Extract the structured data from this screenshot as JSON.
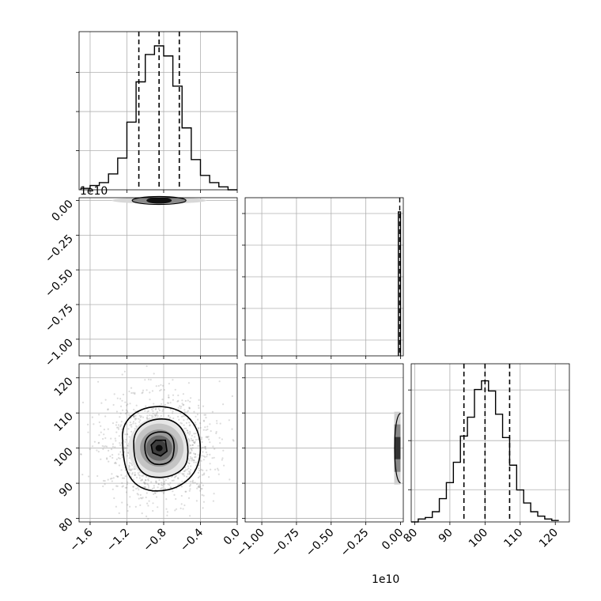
{
  "chart_data": {
    "type": "corner",
    "colors": {
      "hist": "#000000",
      "grid": "#b0b0b0",
      "scatter": "#808080",
      "quantile": "#000000"
    },
    "panels": [
      {
        "id": "p00",
        "type": "histogram",
        "x_range": [
          -1.72,
          0.0
        ],
        "bins_x": [
          -1.7,
          -1.6,
          -1.5,
          -1.4,
          -1.3,
          -1.2,
          -1.1,
          -1.0,
          -0.9,
          -0.8,
          -0.7,
          -0.6,
          -0.5,
          -0.4,
          -0.3,
          -0.2,
          -0.1
        ],
        "counts": [
          0.01,
          0.03,
          0.05,
          0.11,
          0.22,
          0.47,
          0.75,
          0.94,
          1.0,
          0.93,
          0.72,
          0.43,
          0.21,
          0.1,
          0.05,
          0.02,
          0.0
        ],
        "quantiles": [
          -1.07,
          -0.85,
          -0.63
        ],
        "y_ticks": 3
      },
      {
        "id": "p10",
        "type": "density2d",
        "x_range": [
          -1.72,
          0.0
        ],
        "y_range": [
          -1.12,
          0.02
        ],
        "y_ticks": [
          "0.00",
          "−0.25",
          "−0.50",
          "−0.75",
          "−1.00"
        ],
        "y_tick_values": [
          0.0,
          -0.25,
          -0.5,
          -0.75,
          -1.0
        ],
        "offset": "1e10",
        "center": [
          -0.85,
          0.0
        ]
      },
      {
        "id": "p11",
        "type": "histogram",
        "x_range": [
          -1.12,
          0.02
        ],
        "note_value": 0.0
      },
      {
        "id": "p20",
        "type": "density2d",
        "x_range": [
          -1.72,
          0.0
        ],
        "y_range": [
          79,
          124
        ],
        "x_ticks": [
          "−1.6",
          "−1.2",
          "−0.8",
          "−0.4",
          "0.0"
        ],
        "x_tick_values": [
          -1.6,
          -1.2,
          -0.8,
          -0.4,
          0.0
        ],
        "y_ticks": [
          "80",
          "90",
          "100",
          "110",
          "120"
        ],
        "y_tick_values": [
          80,
          90,
          100,
          110,
          120
        ],
        "center": [
          -0.85,
          100.0
        ]
      },
      {
        "id": "p21",
        "type": "density2d",
        "x_range": [
          -1.12,
          0.02
        ],
        "y_range": [
          79,
          124
        ],
        "x_ticks": [
          "−1.00",
          "−0.75",
          "−0.50",
          "−0.25",
          "0.00"
        ],
        "x_tick_values": [
          -1.0,
          -0.75,
          -0.5,
          -0.25,
          0.0
        ],
        "offset": "1e10",
        "center": [
          0.0,
          100.0
        ]
      },
      {
        "id": "p22",
        "type": "histogram",
        "x_range": [
          79,
          124
        ],
        "bins_x": [
          79,
          81,
          83,
          85,
          87,
          89,
          91,
          93,
          95,
          97,
          99,
          101,
          103,
          105,
          107,
          109,
          111,
          113,
          115,
          117,
          119,
          121
        ],
        "counts": [
          0.0,
          0.02,
          0.03,
          0.07,
          0.16,
          0.27,
          0.41,
          0.59,
          0.72,
          0.91,
          0.97,
          0.9,
          0.74,
          0.58,
          0.39,
          0.22,
          0.13,
          0.07,
          0.04,
          0.02,
          0.01
        ],
        "quantiles": [
          94,
          100,
          107
        ],
        "x_ticks": [
          "80",
          "90",
          "100",
          "110",
          "120"
        ],
        "x_tick_values": [
          80,
          90,
          100,
          110,
          120
        ],
        "y_ticks": 3
      }
    ]
  }
}
